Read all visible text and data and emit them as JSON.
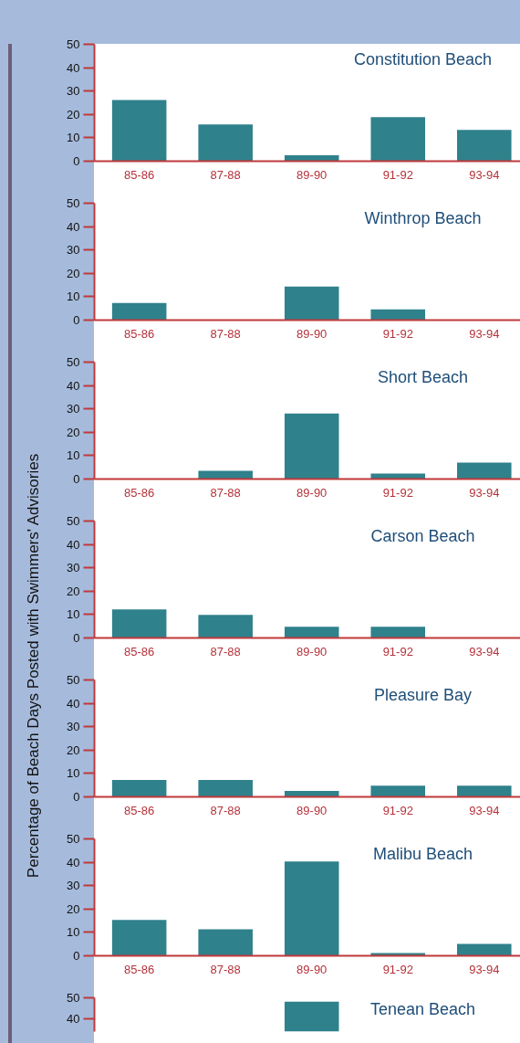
{
  "chart_data": [
    {
      "type": "bar",
      "title": "Constitution Beach",
      "categories": [
        "85-86",
        "87-88",
        "89-90",
        "91-92",
        "93-94"
      ],
      "values": [
        26.2,
        15.7,
        2.5,
        18.8,
        13.4
      ],
      "color": "#2f818c",
      "ylim": [
        0,
        50
      ],
      "yticks": [
        0,
        10,
        20,
        30,
        40,
        50
      ]
    },
    {
      "type": "bar",
      "title": "Winthrop Beach",
      "categories": [
        "85-86",
        "87-88",
        "89-90",
        "91-92",
        "93-94"
      ],
      "values": [
        7.3,
        0,
        14.4,
        4.6,
        0
      ],
      "color": "#2f818c",
      "ylim": [
        0,
        50
      ],
      "yticks": [
        0,
        10,
        20,
        30,
        40,
        50
      ]
    },
    {
      "type": "bar",
      "title": "Short Beach",
      "categories": [
        "85-86",
        "87-88",
        "89-90",
        "91-92",
        "93-94"
      ],
      "values": [
        0,
        3.5,
        28,
        2.3,
        7
      ],
      "color": "#2f818c",
      "ylim": [
        0,
        50
      ],
      "yticks": [
        0,
        10,
        20,
        30,
        40,
        50
      ]
    },
    {
      "type": "bar",
      "title": "Carson Beach",
      "categories": [
        "85-86",
        "87-88",
        "89-90",
        "91-92",
        "93-94"
      ],
      "values": [
        12.2,
        9.9,
        4.8,
        4.8,
        0
      ],
      "color": "#2f818c",
      "ylim": [
        0,
        50
      ],
      "yticks": [
        0,
        10,
        20,
        30,
        40,
        50
      ]
    },
    {
      "type": "bar",
      "title": "Pleasure Bay",
      "ylabel": "Percentage of Beach Days Posted with Swimmers' Advisories",
      "categories": [
        "85-86",
        "87-88",
        "89-90",
        "91-92",
        "93-94"
      ],
      "values": [
        7.2,
        7.2,
        2.5,
        4.8,
        4.8
      ],
      "color": "#2f818c",
      "ylim": [
        0,
        50
      ],
      "yticks": [
        0,
        10,
        20,
        30,
        40,
        50
      ]
    },
    {
      "type": "bar",
      "title": "Malibu Beach",
      "categories": [
        "85-86",
        "87-88",
        "89-90",
        "91-92",
        "93-94"
      ],
      "values": [
        15.3,
        11.3,
        40.3,
        1.2,
        5.1
      ],
      "color": "#2f818c",
      "ylim": [
        0,
        50
      ],
      "yticks": [
        0,
        10,
        20,
        30,
        40,
        50
      ]
    },
    {
      "type": "bar",
      "title": "Tenean Beach",
      "categories": [
        null,
        null,
        null,
        null,
        null
      ],
      "values": [
        null,
        null,
        48.2,
        null,
        null
      ],
      "color": "#2f818c",
      "ylim": [
        34,
        50
      ],
      "yticks": [
        40,
        50
      ],
      "tick_labels": "y"
    }
  ]
}
